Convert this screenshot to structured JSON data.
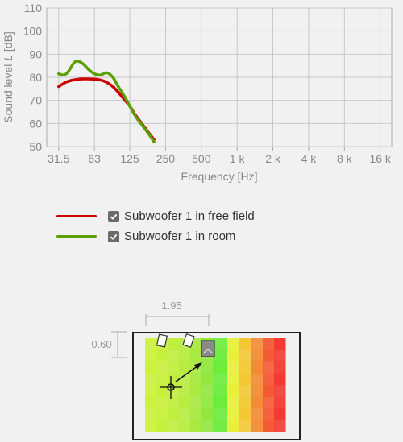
{
  "chart_data": {
    "type": "line",
    "xlabel": "Frequency [Hz]",
    "ylabel": "Sound level L [dB]",
    "ylabel_parts": [
      "Sound level ",
      "L",
      " [dB]"
    ],
    "x_scale": "log",
    "xlim": [
      25,
      20000
    ],
    "ylim": [
      50,
      110
    ],
    "x_ticks": [
      31.5,
      63,
      125,
      250,
      500,
      1000,
      2000,
      4000,
      8000,
      16000
    ],
    "x_tick_labels": [
      "31.5",
      "63",
      "125",
      "250",
      "500",
      "1 k",
      "2 k",
      "4 k",
      "8 k",
      "16 k"
    ],
    "y_ticks": [
      50,
      60,
      70,
      80,
      90,
      100,
      110
    ],
    "grid": true,
    "legend_placement": "bottom",
    "series": [
      {
        "name": "Subwoofer 1 in free field",
        "color": "#cc0000",
        "checked": true,
        "x": [
          31.5,
          36,
          40,
          45,
          50,
          56,
          63,
          71,
          80,
          90,
          100,
          112,
          125,
          140,
          160,
          180,
          200
        ],
        "y": [
          76,
          77.8,
          78.6,
          79.1,
          79.3,
          79.3,
          79.2,
          78.8,
          77.8,
          76,
          73.5,
          70.5,
          67.5,
          63.5,
          59.5,
          56,
          53
        ]
      },
      {
        "name": "Subwoofer 1 in room",
        "color": "#5aa000",
        "checked": true,
        "x": [
          31.5,
          35,
          38,
          42,
          45,
          50,
          56,
          63,
          71,
          80,
          90,
          100,
          112,
          125,
          140,
          160,
          180,
          200
        ],
        "y": [
          81.5,
          81,
          82.5,
          86,
          87,
          86,
          83.5,
          81.5,
          81,
          82,
          80,
          76,
          72,
          67.5,
          63,
          59,
          55.5,
          52
        ]
      }
    ]
  },
  "room": {
    "width_label": "1.95",
    "depth_label": "0.60"
  }
}
